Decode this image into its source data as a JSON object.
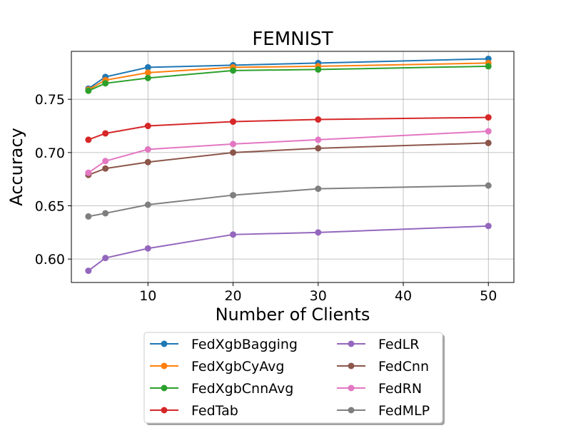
{
  "chart_data": {
    "type": "line",
    "title": "FEMNIST",
    "xlabel": "Number of Clients",
    "ylabel": "Accuracy",
    "x": [
      3,
      5,
      10,
      20,
      30,
      50
    ],
    "xlim": [
      1,
      53
    ],
    "ylim": [
      0.578,
      0.795
    ],
    "xticks": [
      10,
      20,
      30,
      40,
      50
    ],
    "yticks": [
      0.6,
      0.65,
      0.7,
      0.75
    ],
    "xtick_labels": [
      "10",
      "20",
      "30",
      "40",
      "50"
    ],
    "ytick_labels": [
      "0.60",
      "0.65",
      "0.70",
      "0.75"
    ],
    "grid": true,
    "legend_position": "bottom-center, outside plot, 2 columns",
    "series": [
      {
        "name": "FedXgbBagging",
        "color": "#1f77b4",
        "values": [
          0.76,
          0.771,
          0.78,
          0.782,
          0.784,
          0.788
        ]
      },
      {
        "name": "FedXgbCyAvg",
        "color": "#ff7f0e",
        "values": [
          0.759,
          0.768,
          0.775,
          0.78,
          0.781,
          0.784
        ]
      },
      {
        "name": "FedXgbCnnAvg",
        "color": "#2ca02c",
        "values": [
          0.758,
          0.765,
          0.77,
          0.777,
          0.778,
          0.781
        ]
      },
      {
        "name": "FedTab",
        "color": "#d62728",
        "values": [
          0.712,
          0.718,
          0.725,
          0.729,
          0.731,
          0.733
        ]
      },
      {
        "name": "FedLR",
        "color": "#9467bd",
        "values": [
          0.589,
          0.601,
          0.61,
          0.623,
          0.625,
          0.631
        ]
      },
      {
        "name": "FedCnn",
        "color": "#8c564b",
        "values": [
          0.679,
          0.685,
          0.691,
          0.7,
          0.704,
          0.709
        ]
      },
      {
        "name": "FedRN",
        "color": "#e377c2",
        "values": [
          0.681,
          0.692,
          0.703,
          0.708,
          0.712,
          0.72
        ]
      },
      {
        "name": "FedMLP",
        "color": "#7f7f7f",
        "values": [
          0.64,
          0.643,
          0.651,
          0.66,
          0.666,
          0.669
        ]
      }
    ]
  }
}
